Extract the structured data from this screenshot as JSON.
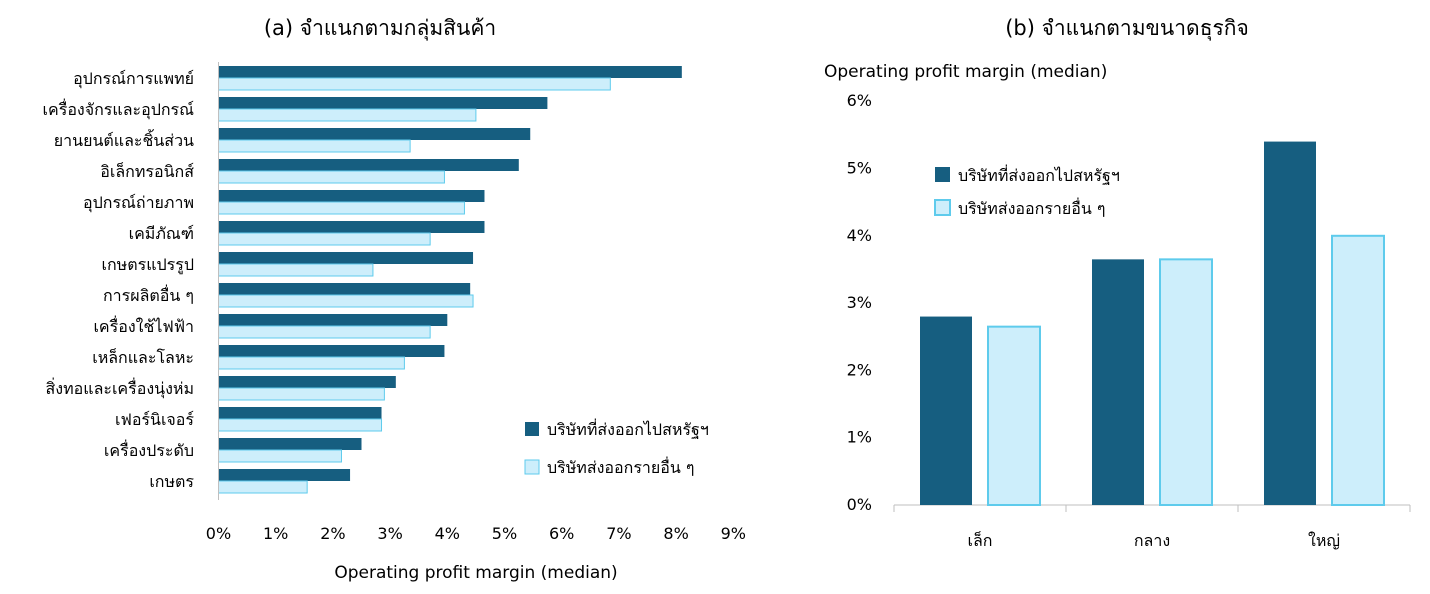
{
  "colors": {
    "us_exporter_fill": "#165e80",
    "other_exporter_fill": "#cdeefb",
    "other_exporter_stroke": "#5ecbec",
    "axis": "#bfbfbf",
    "text": "#1a1a1a"
  },
  "chart_data": [
    {
      "type": "bar",
      "orientation": "horizontal",
      "title": "(a) จำแนกตามกลุ่มสินค้า",
      "xlabel": "Operating profit margin (median)",
      "ylabel": "",
      "xlim": [
        0,
        9
      ],
      "x_ticks": [
        "0%",
        "1%",
        "2%",
        "3%",
        "4%",
        "5%",
        "6%",
        "7%",
        "8%",
        "9%"
      ],
      "categories": [
        "อุปกรณ์การแพทย์",
        "เครื่องจักรและอุปกรณ์",
        "ยานยนต์และชิ้นส่วน",
        "อิเล็กทรอนิกส์",
        "อุปกรณ์ถ่ายภาพ",
        "เคมีภัณฑ์",
        "เกษตรแปรรูป",
        "การผลิตอื่น ๆ",
        "เครื่องใช้ไฟฟ้า",
        "เหล็กและโลหะ",
        "สิ่งทอและเครื่องนุ่งห่ม",
        "เฟอร์นิเจอร์",
        "เครื่องประดับ",
        "เกษตร"
      ],
      "series": [
        {
          "name": "บริษัทที่ส่งออกไปสหรัฐฯ",
          "values": [
            8.1,
            5.75,
            5.45,
            5.25,
            4.65,
            4.65,
            4.45,
            4.4,
            4.0,
            3.95,
            3.1,
            2.85,
            2.5,
            2.3
          ]
        },
        {
          "name": "บริษัทส่งออกรายอื่น ๆ",
          "values": [
            6.85,
            4.5,
            3.35,
            3.95,
            4.3,
            3.7,
            2.7,
            4.45,
            3.7,
            3.25,
            2.9,
            2.85,
            2.15,
            1.55
          ]
        }
      ],
      "legend": "bottom-right",
      "grid": false
    },
    {
      "type": "bar",
      "orientation": "vertical",
      "title": "(b) จำแนกตามขนาดธุรกิจ",
      "xlabel": "",
      "ylabel": "Operating profit margin (median)",
      "ylim": [
        0,
        6
      ],
      "y_ticks": [
        "0%",
        "1%",
        "2%",
        "3%",
        "4%",
        "5%",
        "6%"
      ],
      "categories": [
        "เล็ก",
        "กลาง",
        "ใหญ่"
      ],
      "series": [
        {
          "name": "บริษัทที่ส่งออกไปสหรัฐฯ",
          "values": [
            2.8,
            3.65,
            5.4
          ]
        },
        {
          "name": "บริษัทส่งออกรายอื่น ๆ",
          "values": [
            2.65,
            3.65,
            4.0
          ]
        }
      ],
      "legend": "top-left",
      "grid": false
    }
  ]
}
